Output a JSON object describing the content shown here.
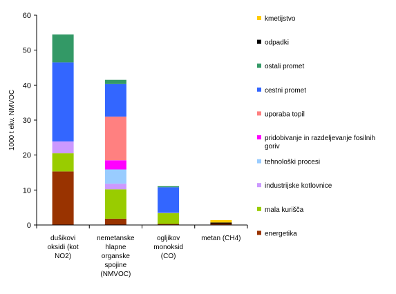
{
  "chart_data": {
    "type": "bar",
    "stacked": true,
    "title": "",
    "xlabel": "",
    "ylabel": "1000 t ekv. NMVOC",
    "ylim": [
      0,
      60
    ],
    "yticks": [
      0,
      10,
      20,
      30,
      40,
      50,
      60
    ],
    "grid": false,
    "legend_position": "right",
    "categories": [
      [
        "dušikovi",
        "oksidi (kot",
        "NO2)"
      ],
      [
        "nemetanske",
        "hlapne",
        "organske",
        "spojine",
        "(NMVOC)"
      ],
      [
        "ogljikov",
        "monoksid",
        "(CO)"
      ],
      [
        "metan (CH4)"
      ]
    ],
    "series": [
      {
        "name": "energetika",
        "color": "#993300",
        "values": [
          15.3,
          1.8,
          0.3,
          0.4
        ]
      },
      {
        "name": "mala kurišča",
        "color": "#99CC00",
        "values": [
          5.2,
          8.4,
          3.1,
          0.0
        ]
      },
      {
        "name": "industrijske kotlovnice",
        "color": "#CC99FF",
        "values": [
          3.4,
          1.6,
          0.1,
          0.0
        ]
      },
      {
        "name": "tehnološki procesi",
        "color": "#99CCFF",
        "values": [
          0.0,
          4.1,
          0.0,
          0.0
        ]
      },
      {
        "name": "pridobivanje in razdeljevanje fosilnih goriv",
        "color": "#FF00FF",
        "values": [
          0.0,
          2.6,
          0.0,
          0.0
        ]
      },
      {
        "name": "uporaba topil",
        "color": "#FF8080",
        "values": [
          0.0,
          12.5,
          0.0,
          0.0
        ]
      },
      {
        "name": "cestni promet",
        "color": "#3366FF",
        "values": [
          22.6,
          9.3,
          7.3,
          0.0
        ]
      },
      {
        "name": "ostali promet",
        "color": "#339966",
        "values": [
          8.0,
          1.2,
          0.3,
          0.0
        ]
      },
      {
        "name": "odpadki",
        "color": "#000000",
        "values": [
          0.0,
          0.0,
          0.0,
          0.3
        ]
      },
      {
        "name": "kmetijstvo",
        "color": "#FFCC00",
        "values": [
          0.0,
          0.0,
          0.0,
          0.7
        ]
      }
    ],
    "legend_order": [
      "kmetijstvo",
      "odpadki",
      "ostali promet",
      "cestni promet",
      "uporaba topil",
      "pridobivanje in razdeljevanje fosilnih goriv",
      "tehnološki procesi",
      "industrijske kotlovnice",
      "mala kurišča",
      "energetika"
    ]
  }
}
